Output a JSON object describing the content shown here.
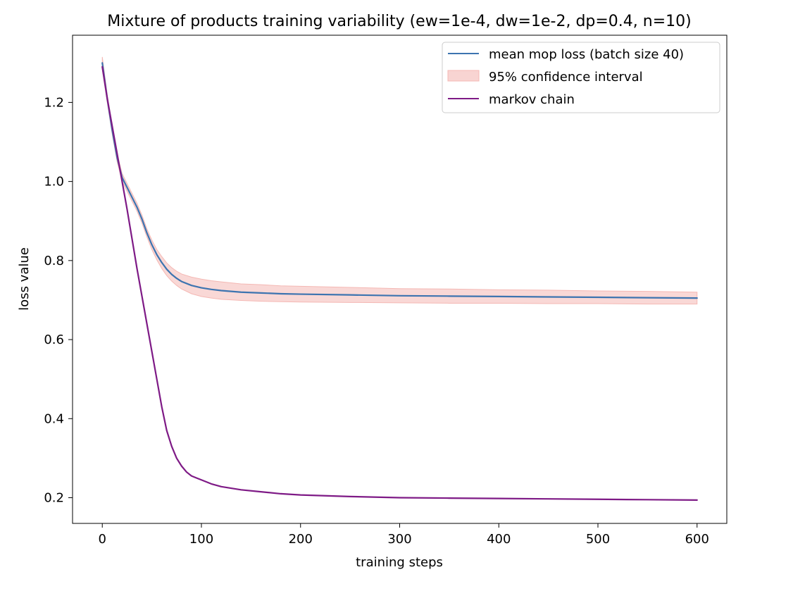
{
  "chart_data": {
    "type": "line",
    "title": "Mixture of products training variability (ew=1e-4, dw=1e-2, dp=0.4, n=10)",
    "xlabel": "training steps",
    "ylabel": "loss value",
    "xlim": [
      -30,
      630
    ],
    "ylim": [
      0.135,
      1.37
    ],
    "xticks": [
      0,
      100,
      200,
      300,
      400,
      500,
      600
    ],
    "yticks": [
      0.2,
      0.4,
      0.6,
      0.8,
      1.0,
      1.2
    ],
    "xtick_labels": [
      "0",
      "100",
      "200",
      "300",
      "400",
      "500",
      "600"
    ],
    "ytick_labels": [
      "0.2",
      "0.4",
      "0.6",
      "0.8",
      "1.0",
      "1.2"
    ],
    "grid": false,
    "legend_position": "top-right",
    "legend": [
      {
        "label": "mean mop loss (batch size 40)",
        "kind": "line",
        "color": "#3d74b0"
      },
      {
        "label": "95% confidence interval",
        "kind": "band",
        "color": "#f4b8b4"
      },
      {
        "label": "markov chain",
        "kind": "line",
        "color": "#7e1a86"
      }
    ],
    "series": [
      {
        "name": "mean mop loss (batch size 40)",
        "kind": "line",
        "color": "#3d74b0",
        "x": [
          0,
          5,
          10,
          15,
          20,
          25,
          30,
          35,
          40,
          45,
          50,
          55,
          60,
          65,
          70,
          75,
          80,
          90,
          100,
          110,
          120,
          140,
          160,
          180,
          200,
          250,
          300,
          350,
          400,
          450,
          500,
          550,
          600
        ],
        "y": [
          1.3,
          1.21,
          1.13,
          1.06,
          1.01,
          0.985,
          0.96,
          0.935,
          0.905,
          0.87,
          0.84,
          0.815,
          0.795,
          0.778,
          0.765,
          0.755,
          0.747,
          0.737,
          0.731,
          0.727,
          0.724,
          0.72,
          0.718,
          0.716,
          0.715,
          0.713,
          0.711,
          0.71,
          0.709,
          0.708,
          0.707,
          0.706,
          0.705
        ]
      },
      {
        "name": "95% confidence interval",
        "kind": "band",
        "color": "#f4b8b4",
        "x": [
          0,
          5,
          10,
          15,
          20,
          25,
          30,
          35,
          40,
          45,
          50,
          55,
          60,
          65,
          70,
          75,
          80,
          90,
          100,
          110,
          120,
          140,
          160,
          180,
          200,
          250,
          300,
          350,
          400,
          450,
          500,
          550,
          600
        ],
        "lower": [
          1.285,
          1.2,
          1.12,
          1.05,
          1.0,
          0.975,
          0.95,
          0.925,
          0.895,
          0.86,
          0.828,
          0.802,
          0.78,
          0.762,
          0.748,
          0.737,
          0.728,
          0.716,
          0.709,
          0.705,
          0.702,
          0.699,
          0.697,
          0.696,
          0.695,
          0.694,
          0.693,
          0.692,
          0.692,
          0.691,
          0.691,
          0.69,
          0.69
        ],
        "upper": [
          1.315,
          1.22,
          1.14,
          1.07,
          1.02,
          0.995,
          0.97,
          0.945,
          0.915,
          0.88,
          0.852,
          0.828,
          0.81,
          0.794,
          0.782,
          0.773,
          0.766,
          0.758,
          0.753,
          0.749,
          0.746,
          0.741,
          0.739,
          0.736,
          0.735,
          0.732,
          0.729,
          0.728,
          0.726,
          0.725,
          0.723,
          0.722,
          0.72
        ]
      },
      {
        "name": "markov chain",
        "kind": "line",
        "color": "#7e1a86",
        "x": [
          0,
          5,
          10,
          15,
          20,
          25,
          30,
          35,
          40,
          45,
          50,
          55,
          60,
          65,
          70,
          75,
          80,
          85,
          90,
          95,
          100,
          110,
          120,
          140,
          160,
          180,
          200,
          250,
          300,
          350,
          400,
          450,
          500,
          550,
          600
        ],
        "y": [
          1.29,
          1.21,
          1.14,
          1.07,
          1.0,
          0.93,
          0.855,
          0.78,
          0.71,
          0.64,
          0.57,
          0.5,
          0.43,
          0.37,
          0.33,
          0.3,
          0.28,
          0.265,
          0.255,
          0.25,
          0.245,
          0.235,
          0.228,
          0.22,
          0.215,
          0.21,
          0.207,
          0.203,
          0.2,
          0.199,
          0.198,
          0.197,
          0.196,
          0.195,
          0.194
        ]
      }
    ]
  }
}
